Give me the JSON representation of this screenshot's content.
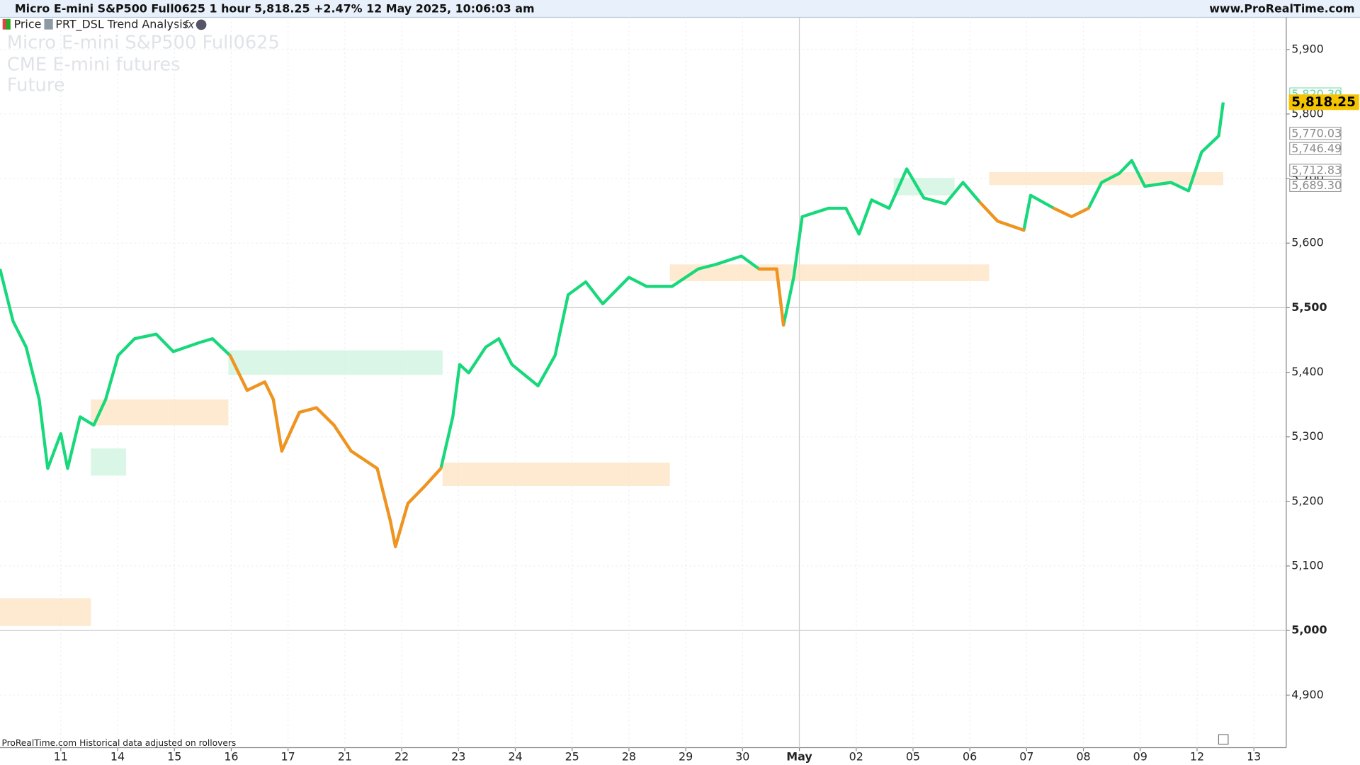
{
  "header": {
    "title": "Micro E-mini S&P500 Full0625 1 hour 5,818.25 +2.47% 12 May 2025, 10:06:03 am",
    "site": "www.ProRealTime.com"
  },
  "legend": {
    "price": "Price",
    "indicator": "PRT_DSL Trend Analysis"
  },
  "watermark": [
    "Micro E-mini S&P500 Full0625",
    "CME E-mini futures",
    "Future"
  ],
  "footer": "ProRealTime.com Historical data adjusted on rollovers",
  "chart_data": {
    "type": "line",
    "xlim": [
      -1.07,
      21.57
    ],
    "ylim": [
      4818.6,
      5949.7
    ],
    "xticks": [
      {
        "value": 0,
        "label": "11"
      },
      {
        "value": 1,
        "label": "14"
      },
      {
        "value": 2,
        "label": "15"
      },
      {
        "value": 3,
        "label": "16"
      },
      {
        "value": 4,
        "label": "17"
      },
      {
        "value": 5,
        "label": "21"
      },
      {
        "value": 6,
        "label": "22"
      },
      {
        "value": 7,
        "label": "23"
      },
      {
        "value": 8,
        "label": "24"
      },
      {
        "value": 9,
        "label": "25"
      },
      {
        "value": 10,
        "label": "28"
      },
      {
        "value": 11,
        "label": "29"
      },
      {
        "value": 12,
        "label": "30"
      },
      {
        "value": 13,
        "label": "May"
      },
      {
        "value": 14,
        "label": "02"
      },
      {
        "value": 15,
        "label": "05"
      },
      {
        "value": 16,
        "label": "06"
      },
      {
        "value": 17,
        "label": "07"
      },
      {
        "value": 18,
        "label": "08"
      },
      {
        "value": 19,
        "label": "09"
      },
      {
        "value": 20,
        "label": "12"
      },
      {
        "value": 21,
        "label": "13"
      }
    ],
    "yticks": [
      {
        "value": 4900,
        "label": "4,900"
      },
      {
        "value": 5000,
        "label": "5,000"
      },
      {
        "value": 5100,
        "label": "5,100"
      },
      {
        "value": 5200,
        "label": "5,200"
      },
      {
        "value": 5300,
        "label": "5,300"
      },
      {
        "value": 5400,
        "label": "5,400"
      },
      {
        "value": 5500,
        "label": "5,500"
      },
      {
        "value": 5600,
        "label": "5,600"
      },
      {
        "value": 5700,
        "label": "5,700"
      },
      {
        "value": 5800,
        "label": "5,800"
      },
      {
        "value": 5900,
        "label": "5,900"
      }
    ],
    "major_yticks": [
      5000,
      5500
    ],
    "session_line": 13,
    "grid": true,
    "x": [
      -1.07,
      -0.84,
      -0.61,
      -0.38,
      -0.23,
      0,
      0.12,
      0.34,
      0.58,
      0.79,
      1.01,
      1.3,
      1.68,
      1.98,
      2.44,
      2.67,
      2.98,
      3.28,
      3.59,
      3.74,
      3.89,
      4.2,
      4.5,
      4.81,
      5.11,
      5.57,
      5.8,
      5.89,
      6.11,
      6.41,
      6.69,
      6.9,
      7.02,
      7.18,
      7.48,
      7.71,
      7.94,
      8.4,
      8.7,
      8.93,
      9.24,
      9.54,
      10.0,
      10.31,
      10.76,
      11.22,
      11.53,
      11.98,
      12.29,
      12.6,
      12.72,
      12.9,
      13.05,
      13.51,
      13.82,
      14.05,
      14.27,
      14.58,
      14.89,
      15.19,
      15.57,
      15.88,
      16.18,
      16.49,
      16.95,
      17.07,
      17.48,
      17.79,
      18.09,
      18.32,
      18.63,
      18.85,
      19.08,
      19.54,
      19.85,
      20.08,
      20.38,
      20.46
    ],
    "series": [
      {
        "name": "Price",
        "color": "#17d87a",
        "values": [
          5560,
          5479,
          5439,
          5358,
          5251,
          5305,
          5251,
          5331,
          5318,
          5358,
          5426,
          5452,
          5459,
          5432,
          5446,
          5452,
          5426,
          5372,
          5385,
          5358,
          5278,
          5338,
          5345,
          5318,
          5278,
          5251,
          5170,
          5130,
          5197,
          5224,
          5251,
          5331,
          5412,
          5399,
          5439,
          5452,
          5412,
          5379,
          5426,
          5520,
          5540,
          5506,
          5547,
          5533,
          5533,
          5560,
          5567,
          5580,
          5560,
          5560,
          5473,
          5547,
          5641,
          5654,
          5654,
          5614,
          5667,
          5654,
          5715,
          5670,
          5661,
          5694,
          5663,
          5634,
          5620,
          5674,
          5654,
          5641,
          5654,
          5694,
          5708,
          5728,
          5688,
          5694,
          5681,
          5741,
          5766,
          5818
        ],
        "down_color": "#f5921e",
        "down_segments": [
          0,
          0,
          0,
          0,
          0,
          0,
          0,
          0,
          0,
          0,
          0,
          0,
          0,
          0,
          0,
          0,
          0,
          1,
          1,
          1,
          1,
          1,
          1,
          1,
          1,
          1,
          1,
          1,
          1,
          1,
          1,
          0,
          0,
          0,
          0,
          0,
          0,
          0,
          0,
          0,
          0,
          0,
          0,
          0,
          0,
          0,
          0,
          0,
          0,
          1,
          1,
          0,
          0,
          0,
          0,
          0,
          0,
          0,
          0,
          0,
          0,
          0,
          0,
          1,
          1,
          0,
          0,
          1,
          1,
          0,
          0,
          0,
          0,
          0,
          0,
          0,
          0,
          0
        ]
      }
    ],
    "bands": [
      {
        "x0": -1.07,
        "x1": 0.53,
        "low": 5007,
        "high": 5050,
        "color": "#fde2c2"
      },
      {
        "x0": 0.53,
        "x1": 1.15,
        "low": 5240,
        "high": 5282,
        "color": "#cdf3de"
      },
      {
        "x0": 0.53,
        "x1": 2.95,
        "low": 5318,
        "high": 5358,
        "color": "#fde2c2"
      },
      {
        "x0": 2.95,
        "x1": 6.72,
        "low": 5396,
        "high": 5434,
        "color": "#cdf3de"
      },
      {
        "x0": 6.72,
        "x1": 10.72,
        "low": 5224,
        "high": 5260,
        "color": "#fde2c2"
      },
      {
        "x0": 10.72,
        "x1": 16.34,
        "low": 5541,
        "high": 5567,
        "color": "#fde2c2"
      },
      {
        "x0": 14.66,
        "x1": 15.73,
        "low": 5674,
        "high": 5701,
        "color": "#cdf3de"
      },
      {
        "x0": 16.34,
        "x1": 20.46,
        "low": 5690,
        "high": 5710,
        "color": "#fde2c2"
      }
    ],
    "price_tags": [
      {
        "value": 5820.3,
        "label": "5,820.30",
        "color": "#5fd69a"
      },
      {
        "value": 5770.03,
        "label": "5,770.03",
        "color": "#8a8a8a"
      },
      {
        "value": 5746.49,
        "label": "5,746.49",
        "color": "#8a8a8a"
      },
      {
        "value": 5712.83,
        "label": "5,712.83",
        "color": "#8a8a8a"
      },
      {
        "value": 5689.3,
        "label": "5,689.30",
        "color": "#8a8a8a"
      }
    ],
    "last_price": {
      "value": 5818.25,
      "label": "5,818.25",
      "color": "#f5c400"
    }
  }
}
